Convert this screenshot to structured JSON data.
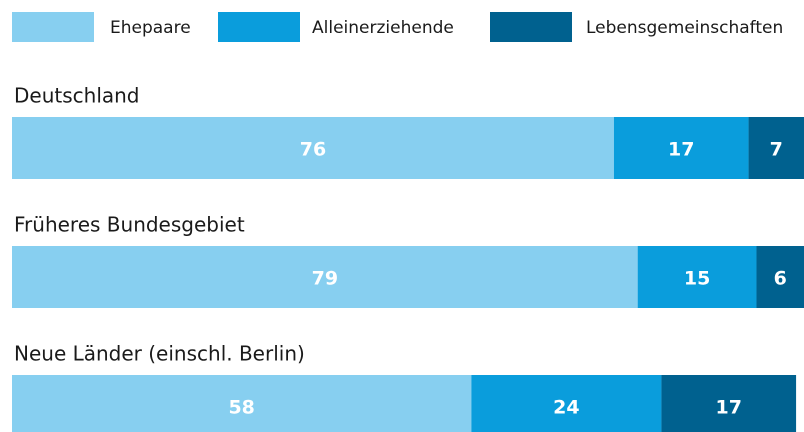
{
  "chart_data": {
    "type": "stacked-bar-horizontal",
    "categories": [
      "Deutschland",
      "Früheres Bundesgebiet",
      "Neue Länder (einschl. Berlin)"
    ],
    "series": [
      {
        "name": "Ehepaare",
        "color": "#87cff0",
        "values": [
          76,
          79,
          58
        ]
      },
      {
        "name": "Alleinerziehende",
        "color": "#0a9ddc",
        "values": [
          17,
          15,
          24
        ]
      },
      {
        "name": "Lebensgemeinschaften",
        "color": "#00618f",
        "values": [
          7,
          6,
          17
        ]
      }
    ],
    "xlim": [
      0,
      100
    ],
    "legend": "top"
  }
}
